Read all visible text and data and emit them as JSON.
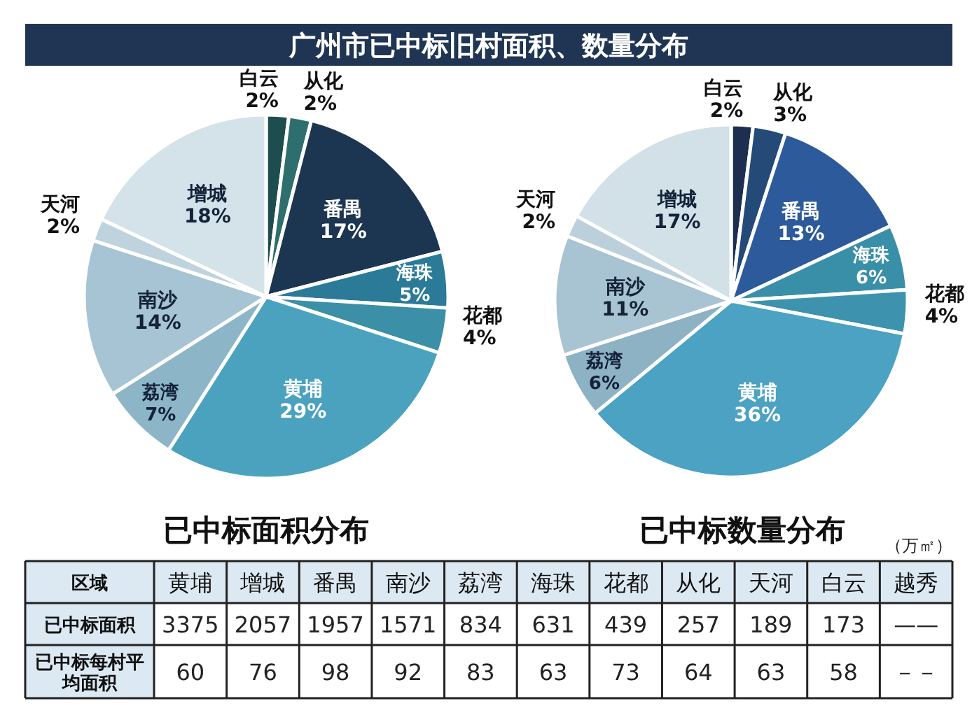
{
  "chart_data": [
    {
      "type": "other",
      "title": "广州市已中标旧村面积、数量分布"
    },
    {
      "type": "pie",
      "title": "已中标面积分布",
      "categories": [
        "白云",
        "从化",
        "番禺",
        "海珠",
        "花都",
        "黄埔",
        "荔湾",
        "南沙",
        "天河",
        "增城"
      ],
      "values": [
        2,
        2,
        17,
        5,
        4,
        29,
        7,
        14,
        2,
        18
      ],
      "colors": [
        "#1e4d4f",
        "#2f6e6e",
        "#1c3652",
        "#2b7a98",
        "#3b8fa6",
        "#4ba2bf",
        "#8db5c8",
        "#a6c4d3",
        "#bed3de",
        "#d4e2ea"
      ],
      "value_labels": [
        "2%",
        "2%",
        "17%",
        "5%",
        "4%",
        "29%",
        "7%",
        "14%",
        "2%",
        "18%"
      ]
    },
    {
      "type": "pie",
      "title": "已中标数量分布",
      "categories": [
        "白云",
        "从化",
        "番禺",
        "海珠",
        "花都",
        "黄埔",
        "荔湾",
        "南沙",
        "天河",
        "增城"
      ],
      "values": [
        2,
        3,
        13,
        6,
        4,
        36,
        6,
        11,
        2,
        17
      ],
      "colors": [
        "#1c2f50",
        "#244a78",
        "#2c5a9a",
        "#3a8fa8",
        "#3d93ad",
        "#4ba2c3",
        "#8db2c4",
        "#a8c3d1",
        "#bcd0dc",
        "#d2e0e8"
      ],
      "value_labels": [
        "2%",
        "3%",
        "13%",
        "6%",
        "4%",
        "36%",
        "6%",
        "11%",
        "2%",
        "17%"
      ]
    },
    {
      "type": "other",
      "xlabel": "区域",
      "data_labels": true,
      "annotations": [
        "（万㎡）",
        {
          "text": "——",
          "x": "越秀"
        },
        {
          "text": "－－",
          "x": "越秀"
        }
      ],
      "categories": [
        "黄埔",
        "增城",
        "番禺",
        "南沙",
        "荔湾",
        "海珠",
        "花都",
        "从化",
        "天河",
        "白云",
        "越秀"
      ],
      "series": [
        {
          "name": "已中标面积",
          "values": [
            3375,
            2057,
            1957,
            1571,
            834,
            631,
            439,
            257,
            189,
            173,
            null
          ]
        },
        {
          "name": "已中标每村平均面积",
          "values": [
            60,
            76,
            98,
            92,
            83,
            63,
            73,
            64,
            63,
            58,
            null
          ]
        }
      ]
    }
  ]
}
